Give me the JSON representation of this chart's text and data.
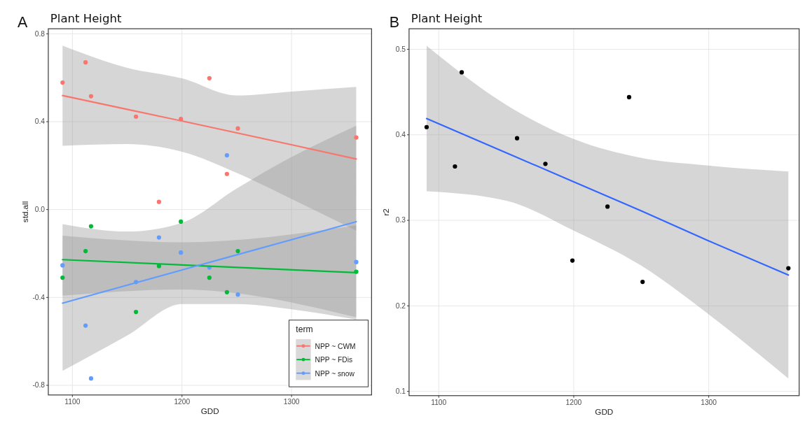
{
  "chart_data": [
    {
      "type": "scatter",
      "title": "Plant Height",
      "xlabel": "GDD",
      "ylabel": "std.all",
      "annotations": [
        "A"
      ],
      "xlim": [
        1078,
        1373
      ],
      "ylim": [
        -0.844,
        0.823
      ],
      "xticks": [
        1100,
        1200,
        1300
      ],
      "yticks": [
        -0.8,
        -0.4,
        {
          "value": 0,
          "label": "0.0"
        },
        0.4,
        0.8
      ],
      "grid": true,
      "legend": "bottom right",
      "legend_title": "term",
      "x": [
        1091,
        1112,
        1117,
        1158,
        1179,
        1199,
        1225,
        1241,
        1251,
        1359
      ],
      "series": [
        {
          "name": "NPP ~ CWM",
          "marker": "circle",
          "color": "#f8766d",
          "values": [
            0.578,
            0.67,
            0.516,
            0.423,
            0.035,
            0.412,
            0.598,
            0.162,
            0.369,
            0.328
          ]
        },
        {
          "name": "NPP ~ FDis",
          "marker": "circle",
          "color": "#00ba38",
          "values": [
            -0.31,
            -0.189,
            -0.076,
            -0.466,
            -0.257,
            -0.055,
            -0.31,
            -0.376,
            -0.189,
            -0.283
          ]
        },
        {
          "name": "NPP ~ snow",
          "marker": "circle",
          "color": "#619cff",
          "values": [
            -0.254,
            -0.528,
            -0.769,
            -0.33,
            -0.127,
            -0.196,
            -0.264,
            0.247,
            -0.387,
            -0.239
          ]
        },
        {
          "type": "line",
          "color": "#f8766d",
          "x": [
            1091,
            1150,
            1200,
            1250,
            1300,
            1359
          ],
          "values": [
            0.519,
            0.456,
            0.403,
            0.349,
            0.295,
            0.23
          ],
          "lower": [
            0.29,
            0.298,
            0.263,
            0.167,
            0.048,
            -0.096
          ],
          "upper": [
            0.746,
            0.645,
            0.597,
            0.519,
            0.537,
            0.558
          ]
        },
        {
          "type": "line",
          "color": "#00ba38",
          "x": [
            1091,
            1200,
            1359
          ],
          "values": [
            -0.228,
            -0.252,
            -0.287
          ],
          "lower": [
            -0.392,
            -0.364,
            -0.49
          ],
          "upper": [
            -0.119,
            -0.149,
            -0.072
          ]
        },
        {
          "type": "line",
          "color": "#619cff",
          "x": [
            1091,
            1150,
            1200,
            1250,
            1300,
            1359
          ],
          "values": [
            -0.426,
            -0.344,
            -0.275,
            -0.206,
            -0.137,
            -0.055
          ],
          "lower": [
            -0.734,
            -0.573,
            -0.43,
            -0.43,
            -0.454,
            -0.501
          ],
          "upper": [
            -0.066,
            -0.1,
            -0.06,
            0.096,
            0.239,
            0.382
          ]
        }
      ]
    },
    {
      "type": "scatter",
      "title": "Plant Height",
      "xlabel": "GDD",
      "ylabel": "r2",
      "annotations": [
        "B"
      ],
      "xlim": [
        1078,
        1367
      ],
      "ylim": [
        0.095,
        0.524
      ],
      "xticks": [
        1100,
        1200,
        1300
      ],
      "yticks": [
        0.1,
        0.2,
        0.3,
        0.4,
        0.5
      ],
      "grid": true,
      "x": [
        1091,
        1112,
        1117,
        1158,
        1179,
        1199,
        1225,
        1241,
        1251,
        1359
      ],
      "series": [
        {
          "marker": "circle",
          "color": "#000000",
          "values": [
            0.409,
            0.363,
            0.473,
            0.396,
            0.366,
            0.253,
            0.316,
            0.444,
            0.228,
            0.244
          ]
        },
        {
          "type": "line",
          "color": "#3366ff",
          "x": [
            1091,
            1150,
            1200,
            1250,
            1300,
            1359
          ],
          "values": [
            0.419,
            0.379,
            0.345,
            0.311,
            0.276,
            0.236
          ],
          "lower": [
            0.334,
            0.323,
            0.288,
            0.247,
            0.19,
            0.115
          ],
          "upper": [
            0.504,
            0.435,
            0.395,
            0.373,
            0.364,
            0.357
          ]
        }
      ]
    }
  ]
}
